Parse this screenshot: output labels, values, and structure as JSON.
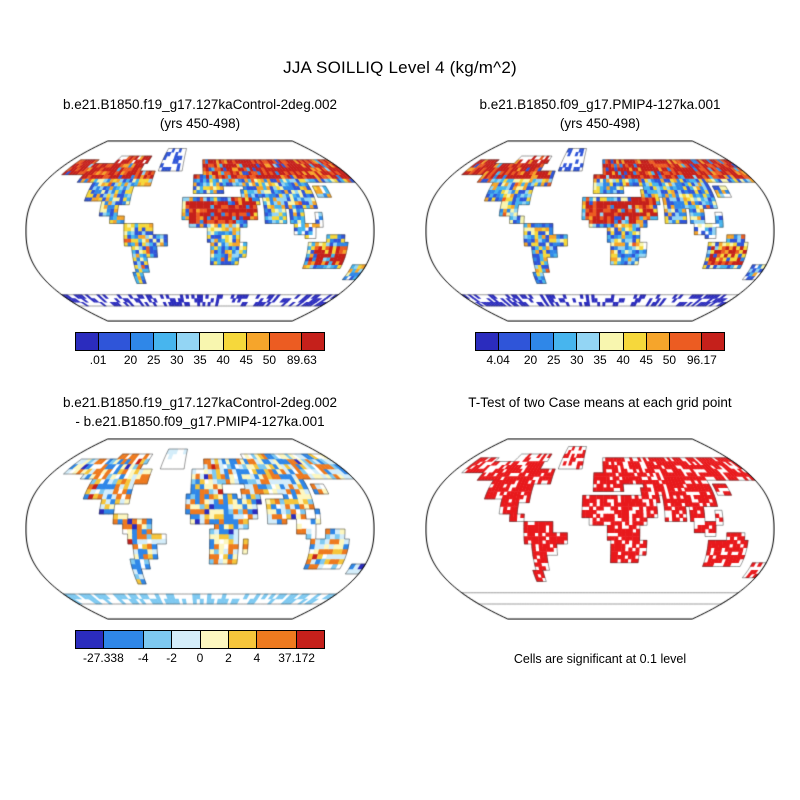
{
  "figure": {
    "title": "JJA SOILLIQ Level 4 (kg/m^2)"
  },
  "chart_data": {
    "type": "heatmap",
    "description": "Four global map panels (Robinson-style projection): two case climatologies of JJA soil liquid water at level 4, their difference, and a t-test significance map",
    "panels": [
      {
        "title_line1": "b.e21.B1850.f19_g17.127kaControl-2deg.002",
        "title_line2": "(yrs 450-498)",
        "kind": "field",
        "colorbar": {
          "min": 0.01,
          "max": 89.63,
          "labels": [
            ".01",
            "20",
            "25",
            "30",
            "35",
            "40",
            "45",
            "50",
            "89.63"
          ],
          "colors": [
            "#2b2cbe",
            "#2f55d9",
            "#2f87e8",
            "#47b5ee",
            "#93d5f4",
            "#f8f6af",
            "#f6d83b",
            "#f6a52b",
            "#ec5c22",
            "#c5201b"
          ]
        }
      },
      {
        "title_line1": "b.e21.B1850.f09_g17.PMIP4-127ka.001",
        "title_line2": "(yrs 450-498)",
        "kind": "field",
        "colorbar": {
          "min": 4.04,
          "max": 96.17,
          "labels": [
            "4.04",
            "20",
            "25",
            "30",
            "35",
            "40",
            "45",
            "50",
            "96.17"
          ],
          "colors": [
            "#2b2cbe",
            "#2f55d9",
            "#2f87e8",
            "#47b5ee",
            "#93d5f4",
            "#f8f6af",
            "#f6d83b",
            "#f6a52b",
            "#ec5c22",
            "#c5201b"
          ]
        }
      },
      {
        "title_line1": "b.e21.B1850.f19_g17.127kaControl-2deg.002",
        "title_line2": "- b.e21.B1850.f09_g17.PMIP4-127ka.001",
        "kind": "difference",
        "colorbar": {
          "min": -27.338,
          "max": 37.172,
          "labels": [
            "-27.338",
            "-4",
            "-2",
            "0",
            "2",
            "4",
            "37.172"
          ],
          "colors": [
            "#2b2cbe",
            "#2f87e8",
            "#7ec9f1",
            "#d4edfa",
            "#fdf7c0",
            "#f6c53b",
            "#ee7a1f",
            "#c5201b"
          ]
        }
      },
      {
        "title_line1": "T-Test of two Case means at each grid point",
        "title_line2": "",
        "kind": "ttest",
        "significance_color": "#e8191c",
        "caption": "Cells are significant at 0.1 level"
      }
    ]
  }
}
